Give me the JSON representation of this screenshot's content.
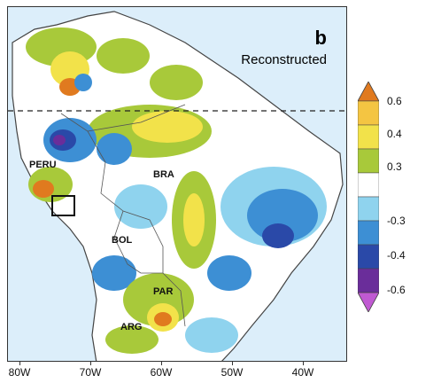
{
  "panel": {
    "letter": "b",
    "title": "Reconstructed"
  },
  "country_labels": {
    "peru": "PERU",
    "bra": "BRA",
    "bol": "BOL",
    "par": "PAR",
    "arg": "ARG"
  },
  "x_axis": {
    "ticks": [
      "80W",
      "70W",
      "60W",
      "50W",
      "40W"
    ]
  },
  "colorbar": {
    "ticks": [
      "0.6",
      "0.4",
      "0.3",
      "-0.3",
      "-0.4",
      "-0.6"
    ],
    "colors": [
      "#e07a1f",
      "#f4c542",
      "#f2e24a",
      "#a8c93a",
      "#ffffff",
      "#8fd3ee",
      "#3d8fd4",
      "#2a49a8",
      "#6a2d9a",
      "#c05ad2"
    ]
  },
  "colors": {
    "ocean": "#dceefa",
    "land": "#ffffff",
    "coast": "#444444"
  }
}
